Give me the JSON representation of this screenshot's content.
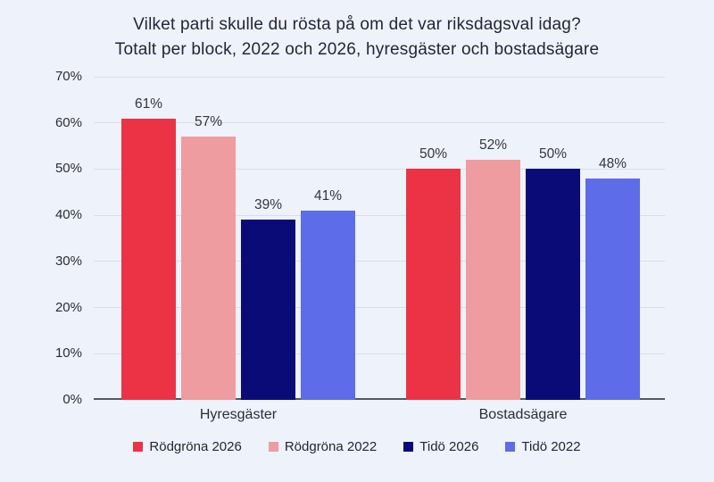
{
  "title": {
    "line1": "Vilket parti skulle du rösta på om det var riksdagsval idag?",
    "line2": "Totalt per block, 2022 och 2026, hyresgäster och bostadsägare"
  },
  "chart_data": {
    "type": "bar",
    "categories": [
      "Hyresgäster",
      "Bostadsägare"
    ],
    "series": [
      {
        "name": "Rödgröna 2026",
        "color": "#EC3346",
        "values": [
          61,
          50
        ]
      },
      {
        "name": "Rödgröna 2022",
        "color": "#EE9CA0",
        "values": [
          57,
          52
        ]
      },
      {
        "name": "Tidö 2026",
        "color": "#0B0B78",
        "values": [
          39,
          50
        ]
      },
      {
        "name": "Tidö 2022",
        "color": "#5D6CE9",
        "values": [
          41,
          48
        ]
      }
    ],
    "value_suffix": "%",
    "ylabel": "",
    "xlabel": "",
    "ylim": [
      0,
      70
    ],
    "y_ticks": [
      "0%",
      "10%",
      "20%",
      "30%",
      "40%",
      "50%",
      "60%",
      "70%"
    ],
    "grid": true,
    "legend_position": "bottom"
  },
  "colors": {
    "background": "#EEF2FB",
    "gridline": "#DBDEE9",
    "baseline": "#56575F",
    "text": "#24253A"
  }
}
